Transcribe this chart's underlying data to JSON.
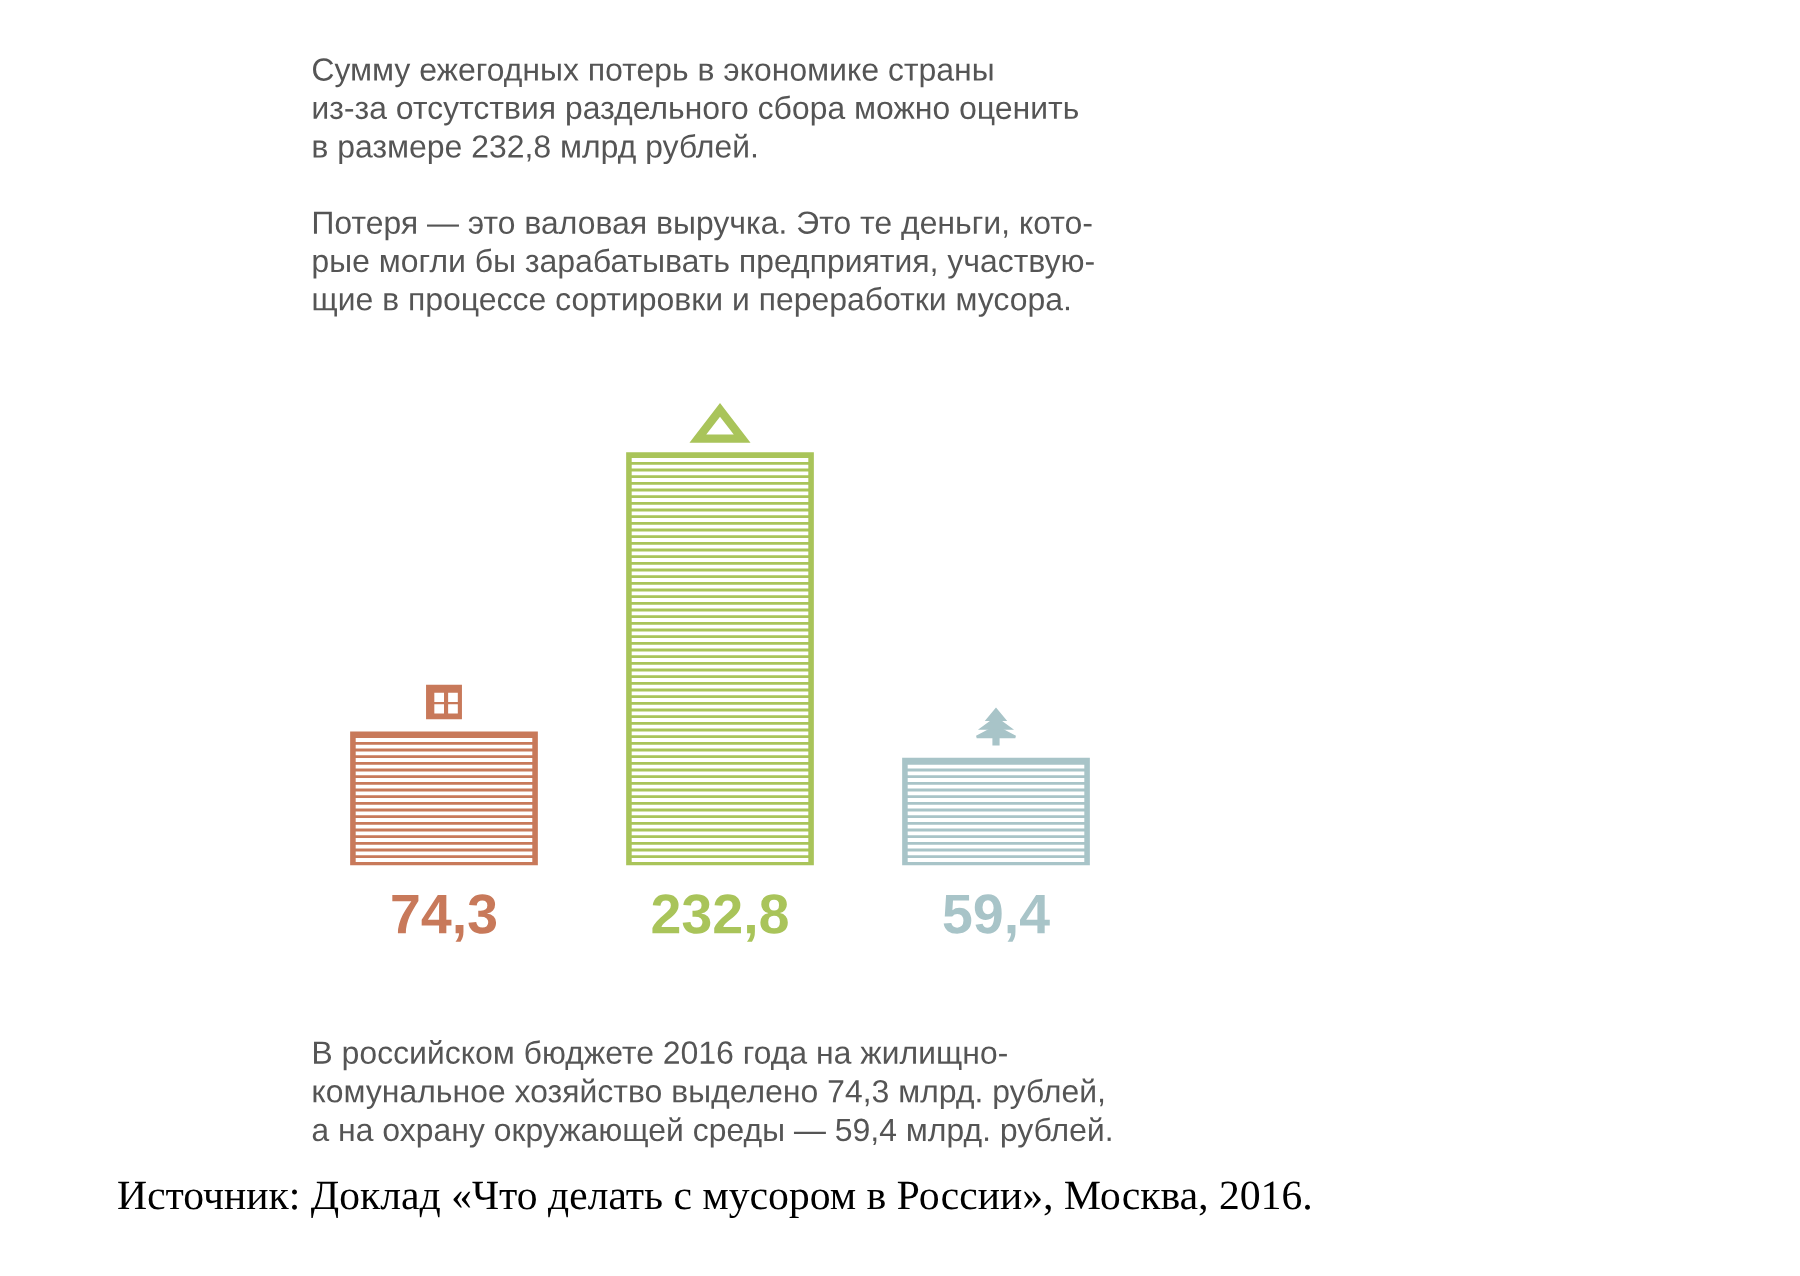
{
  "chart_data": {
    "type": "bar",
    "title": "Сумму ежегодных потерь в экономике страны\nиз-за отсутствия раздельного сбора можно оценить\nв размере 232,8 млрд рублей.",
    "subtitle": "Потеря — это валовая выручка. Это те деньги, кото-\nрые могли бы зарабатывать предприятия, участвую-\nщие в процессе сортировки и переработки мусора.",
    "categories": [
      null,
      null,
      null
    ],
    "values": [
      74.3,
      232.8,
      59.4
    ],
    "colors": [
      "#c8795a",
      "#a9c45a",
      "#a8c4c8"
    ],
    "value_labels": [
      "74,3",
      "232,8",
      "59,4"
    ],
    "annotations": [
      "В российском бюджете 2016 года на жилищно-\nкомунальное хозяйство выделено 74,3 млрд. рублей,\nа на охрану окружающей среды — 59,4 млрд. рублей.",
      "Источник: Доклад «Что делать с мусором в России», Москва, 2016."
    ]
  }
}
